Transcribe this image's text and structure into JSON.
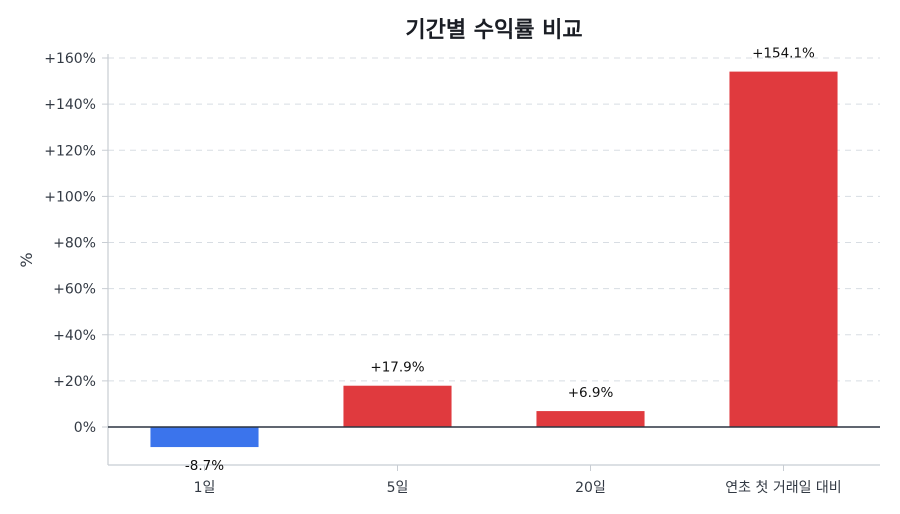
{
  "chart_data": {
    "type": "bar",
    "title": "기간별 수익률 비교",
    "xlabel": "",
    "ylabel": "%",
    "categories": [
      "1일",
      "5일",
      "20일",
      "연초 첫 거래일 대비"
    ],
    "values": [
      -8.7,
      17.9,
      6.9,
      154.1
    ],
    "data_labels": [
      "-8.7%",
      "+17.9%",
      "+6.9%",
      "+154.1%"
    ],
    "ylim": [
      -16,
      160
    ],
    "yticks": [
      0,
      20,
      40,
      60,
      80,
      100,
      120,
      140,
      160
    ],
    "ytick_labels": [
      "0%",
      "+20%",
      "+40%",
      "+60%",
      "+80%",
      "+100%",
      "+120%",
      "+140%",
      "+160%"
    ],
    "grid": true,
    "colors": {
      "positive": "#e03a3e",
      "negative": "#3b74ec",
      "zero_line": "#2b3440",
      "grid": "#d8dde3",
      "axis": "#c8cdd3"
    }
  }
}
